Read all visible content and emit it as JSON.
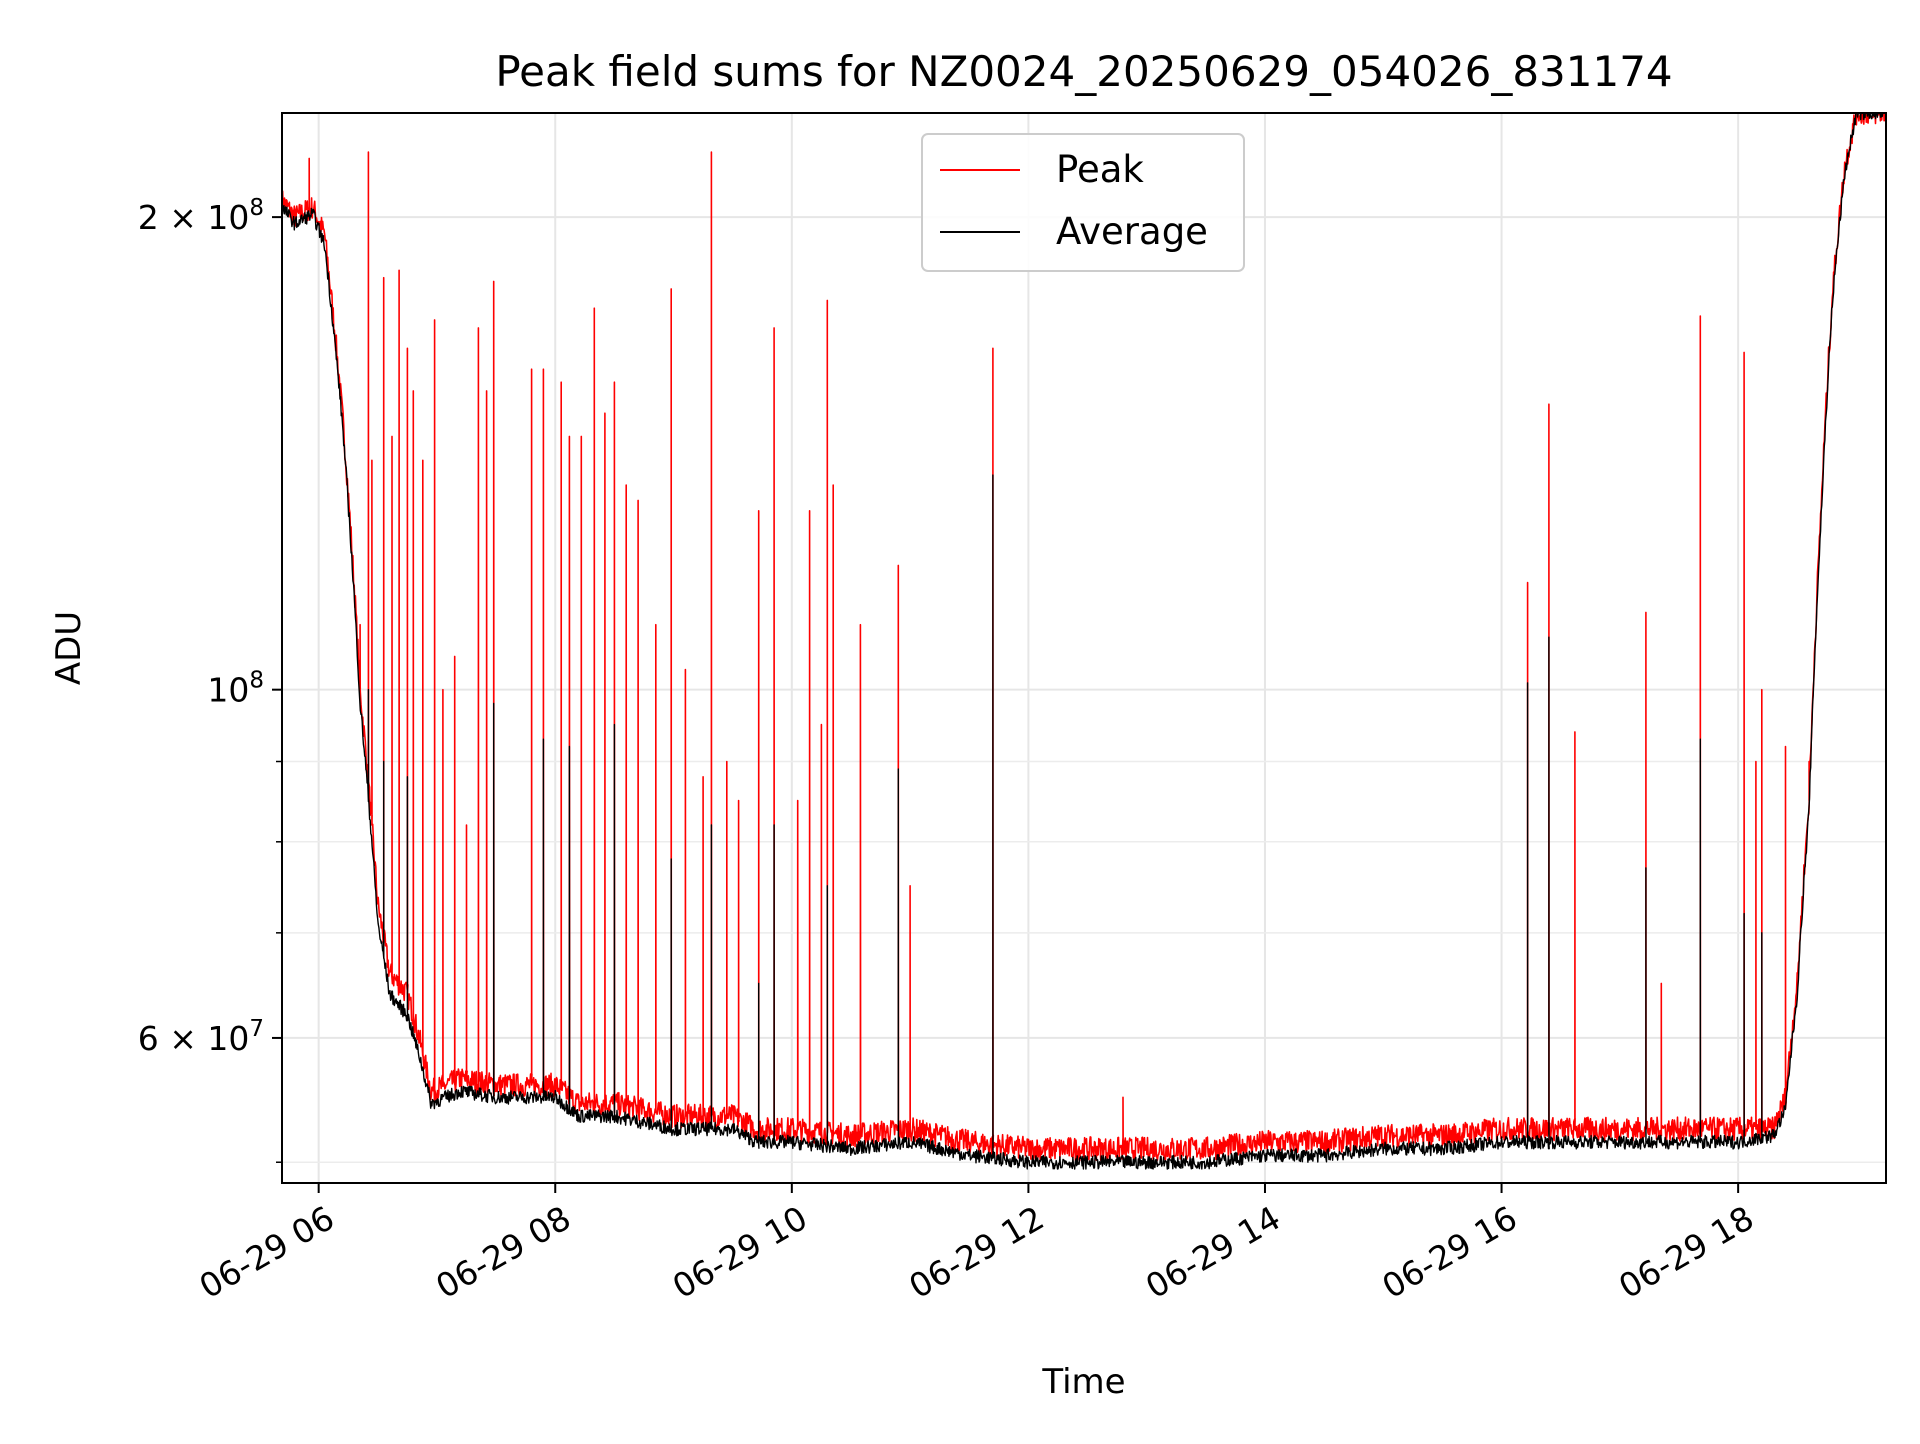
{
  "chart_data": {
    "type": "line",
    "title": "Peak field sums for NZ0024_20250629_054026_831174",
    "xlabel": "Time",
    "ylabel": "ADU",
    "yscale": "log",
    "xlim": [
      5.69,
      19.25
    ],
    "ylim": [
      48500000,
      233000000
    ],
    "grid": true,
    "legend_position": "top-center",
    "x_ticks": [
      {
        "value": 6,
        "label": "06-29 06"
      },
      {
        "value": 8,
        "label": "06-29 08"
      },
      {
        "value": 10,
        "label": "06-29 10"
      },
      {
        "value": 12,
        "label": "06-29 12"
      },
      {
        "value": 14,
        "label": "06-29 14"
      },
      {
        "value": 16,
        "label": "06-29 16"
      },
      {
        "value": 18,
        "label": "06-29 18"
      }
    ],
    "y_ticks": [
      {
        "value": 200000000,
        "base": "2 × 10",
        "exp": "8"
      },
      {
        "value": 100000000,
        "base": "10",
        "exp": "8"
      },
      {
        "value": 60000000,
        "base": "6 × 10",
        "exp": "7"
      }
    ],
    "y_minor_grid": [
      50000000,
      70000000,
      80000000,
      90000000
    ],
    "series": [
      {
        "name": "Peak",
        "color": "#ff0000",
        "baseline": [
          [
            5.69,
            205000000
          ],
          [
            5.8,
            200000000
          ],
          [
            5.95,
            203000000
          ],
          [
            6.05,
            195000000
          ],
          [
            6.2,
            150000000
          ],
          [
            6.35,
            100000000
          ],
          [
            6.5,
            73000000
          ],
          [
            6.6,
            66000000
          ],
          [
            6.75,
            64000000
          ],
          [
            6.85,
            60000000
          ],
          [
            6.95,
            55500000
          ],
          [
            7.2,
            56500000
          ],
          [
            7.5,
            56000000
          ],
          [
            8,
            56000000
          ],
          [
            8.2,
            54500000
          ],
          [
            8.5,
            54500000
          ],
          [
            9,
            53500000
          ],
          [
            9.5,
            53500000
          ],
          [
            9.7,
            52500000
          ],
          [
            10,
            52500000
          ],
          [
            10.5,
            52000000
          ],
          [
            11,
            52500000
          ],
          [
            11.5,
            51500000
          ],
          [
            12,
            51000000
          ],
          [
            12.5,
            51000000
          ],
          [
            13,
            51000000
          ],
          [
            13.5,
            51000000
          ],
          [
            14,
            51500000
          ],
          [
            14.5,
            51500000
          ],
          [
            15,
            52000000
          ],
          [
            15.5,
            52000000
          ],
          [
            16,
            52500000
          ],
          [
            16.5,
            52500000
          ],
          [
            17,
            52500000
          ],
          [
            17.5,
            52500000
          ],
          [
            18,
            52500000
          ],
          [
            18.3,
            52500000
          ],
          [
            18.4,
            55000000
          ],
          [
            18.5,
            65000000
          ],
          [
            18.6,
            85000000
          ],
          [
            18.7,
            130000000
          ],
          [
            18.8,
            180000000
          ],
          [
            18.9,
            215000000
          ],
          [
            19,
            233000000
          ],
          [
            19.25,
            233000000
          ]
        ],
        "spikes": [
          [
            5.92,
            218000000
          ],
          [
            6.35,
            110000000
          ],
          [
            6.42,
            220000000
          ],
          [
            6.45,
            140000000
          ],
          [
            6.55,
            183000000
          ],
          [
            6.62,
            145000000
          ],
          [
            6.68,
            185000000
          ],
          [
            6.75,
            165000000
          ],
          [
            6.8,
            155000000
          ],
          [
            6.88,
            140000000
          ],
          [
            6.98,
            172000000
          ],
          [
            7.05,
            100000000
          ],
          [
            7.15,
            105000000
          ],
          [
            7.25,
            82000000
          ],
          [
            7.35,
            170000000
          ],
          [
            7.42,
            155000000
          ],
          [
            7.48,
            182000000
          ],
          [
            7.8,
            160000000
          ],
          [
            7.9,
            160000000
          ],
          [
            8.05,
            157000000
          ],
          [
            8.12,
            145000000
          ],
          [
            8.22,
            145000000
          ],
          [
            8.33,
            175000000
          ],
          [
            8.42,
            150000000
          ],
          [
            8.5,
            157000000
          ],
          [
            8.6,
            135000000
          ],
          [
            8.7,
            132000000
          ],
          [
            8.85,
            110000000
          ],
          [
            8.98,
            180000000
          ],
          [
            9.1,
            103000000
          ],
          [
            9.25,
            88000000
          ],
          [
            9.32,
            220000000
          ],
          [
            9.45,
            90000000
          ],
          [
            9.55,
            85000000
          ],
          [
            9.72,
            130000000
          ],
          [
            9.85,
            170000000
          ],
          [
            10.05,
            85000000
          ],
          [
            10.15,
            130000000
          ],
          [
            10.25,
            95000000
          ],
          [
            10.3,
            177000000
          ],
          [
            10.35,
            135000000
          ],
          [
            10.58,
            110000000
          ],
          [
            10.9,
            120000000
          ],
          [
            11,
            75000000
          ],
          [
            11.7,
            165000000
          ],
          [
            12.8,
            55000000
          ],
          [
            16.22,
            117000000
          ],
          [
            16.4,
            152000000
          ],
          [
            16.62,
            94000000
          ],
          [
            17.22,
            112000000
          ],
          [
            17.35,
            65000000
          ],
          [
            17.68,
            173000000
          ],
          [
            18.05,
            164000000
          ],
          [
            18.15,
            90000000
          ],
          [
            18.2,
            100000000
          ],
          [
            18.4,
            92000000
          ],
          [
            18.6,
            90000000
          ]
        ]
      },
      {
        "name": "Average",
        "color": "#000000",
        "baseline": [
          [
            5.69,
            203000000
          ],
          [
            5.8,
            198000000
          ],
          [
            5.95,
            201000000
          ],
          [
            6.05,
            192000000
          ],
          [
            6.2,
            148000000
          ],
          [
            6.35,
            98000000
          ],
          [
            6.5,
            71000000
          ],
          [
            6.6,
            64000000
          ],
          [
            6.75,
            62000000
          ],
          [
            6.85,
            58500000
          ],
          [
            6.95,
            54500000
          ],
          [
            7.2,
            55500000
          ],
          [
            7.5,
            55000000
          ],
          [
            8,
            55000000
          ],
          [
            8.2,
            53500000
          ],
          [
            8.5,
            53500000
          ],
          [
            9,
            52500000
          ],
          [
            9.5,
            52500000
          ],
          [
            9.7,
            51500000
          ],
          [
            10,
            51500000
          ],
          [
            10.5,
            51000000
          ],
          [
            11,
            51500000
          ],
          [
            11.5,
            50500000
          ],
          [
            12,
            50000000
          ],
          [
            12.5,
            50000000
          ],
          [
            13,
            50000000
          ],
          [
            13.5,
            50000000
          ],
          [
            14,
            50500000
          ],
          [
            14.5,
            50500000
          ],
          [
            15,
            51000000
          ],
          [
            15.5,
            51000000
          ],
          [
            16,
            51500000
          ],
          [
            16.5,
            51500000
          ],
          [
            17,
            51500000
          ],
          [
            17.5,
            51500000
          ],
          [
            18,
            51500000
          ],
          [
            18.3,
            52000000
          ],
          [
            18.4,
            54000000
          ],
          [
            18.5,
            64000000
          ],
          [
            18.6,
            84000000
          ],
          [
            18.7,
            128000000
          ],
          [
            18.8,
            178000000
          ],
          [
            18.9,
            213000000
          ],
          [
            19,
            233000000
          ],
          [
            19.25,
            233000000
          ]
        ],
        "spikes": [
          [
            6.42,
            100000000
          ],
          [
            6.55,
            90000000
          ],
          [
            6.75,
            88000000
          ],
          [
            7.48,
            98000000
          ],
          [
            7.9,
            93000000
          ],
          [
            8.12,
            92000000
          ],
          [
            8.5,
            95000000
          ],
          [
            8.98,
            78000000
          ],
          [
            9.32,
            82000000
          ],
          [
            9.72,
            65000000
          ],
          [
            9.85,
            82000000
          ],
          [
            10.3,
            75000000
          ],
          [
            10.9,
            89000000
          ],
          [
            11.7,
            137000000
          ],
          [
            16.22,
            101000000
          ],
          [
            16.4,
            108000000
          ],
          [
            17.22,
            77000000
          ],
          [
            17.68,
            93000000
          ],
          [
            18.05,
            72000000
          ],
          [
            18.2,
            70000000
          ]
        ]
      }
    ]
  }
}
